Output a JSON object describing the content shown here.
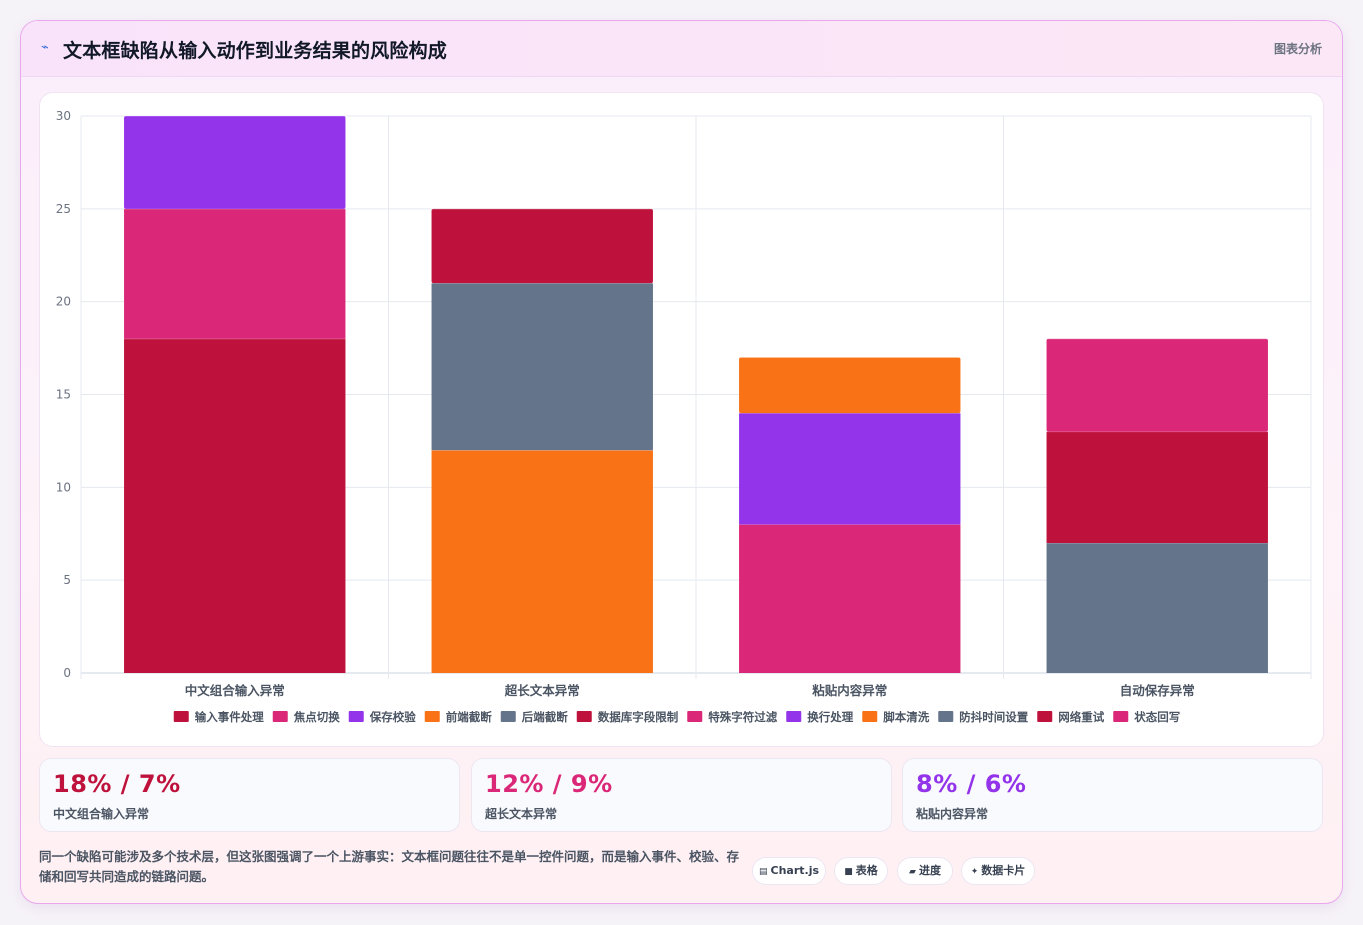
{
  "header": {
    "title": "文本框缺陷从输入动作到业务结果的风险构成",
    "tag": "图表分析"
  },
  "chart_data": {
    "type": "bar",
    "stacked": true,
    "categories": [
      "中文组合输入异常",
      "超长文本异常",
      "粘贴内容异常",
      "自动保存异常"
    ],
    "ylim": [
      0,
      30
    ],
    "yticks": [
      0,
      5,
      10,
      15,
      20,
      25,
      30
    ],
    "grid": true,
    "legend_position": "bottom",
    "series": [
      {
        "name": "输入事件处理",
        "color": "#be123c",
        "values": [
          18,
          null,
          null,
          null
        ]
      },
      {
        "name": "焦点切换",
        "color": "#db2777",
        "values": [
          7,
          null,
          null,
          null
        ]
      },
      {
        "name": "保存校验",
        "color": "#9333ea",
        "values": [
          5,
          null,
          null,
          null
        ]
      },
      {
        "name": "前端截断",
        "color": "#f97316",
        "values": [
          null,
          12,
          null,
          null
        ]
      },
      {
        "name": "后端截断",
        "color": "#64748b",
        "values": [
          null,
          9,
          null,
          null
        ]
      },
      {
        "name": "数据库字段限制",
        "color": "#be123c",
        "values": [
          null,
          4,
          null,
          null
        ]
      },
      {
        "name": "特殊字符过滤",
        "color": "#db2777",
        "values": [
          null,
          null,
          8,
          null
        ]
      },
      {
        "name": "换行处理",
        "color": "#9333ea",
        "values": [
          null,
          null,
          6,
          null
        ]
      },
      {
        "name": "脚本清洗",
        "color": "#f97316",
        "values": [
          null,
          null,
          3,
          null
        ]
      },
      {
        "name": "防抖时间设置",
        "color": "#64748b",
        "values": [
          null,
          null,
          null,
          7
        ]
      },
      {
        "name": "网络重试",
        "color": "#be123c",
        "values": [
          null,
          null,
          null,
          6
        ]
      },
      {
        "name": "状态回写",
        "color": "#db2777",
        "values": [
          null,
          null,
          null,
          5
        ]
      }
    ]
  },
  "stats": [
    {
      "value": "18% / 7%",
      "label": "中文组合输入异常",
      "color": "#be123c"
    },
    {
      "value": "12% / 9%",
      "label": "超长文本异常",
      "color": "#db2777"
    },
    {
      "value": "8% / 6%",
      "label": "粘贴内容异常",
      "color": "#9333ea"
    }
  ],
  "note": "同一个缺陷可能涉及多个技术层，但这张图强调了一个上游事实：文本框问题往往不是单一控件问题，而是输入事件、校验、存储和回写共同造成的链路问题。",
  "chips": [
    {
      "icon": "chart-icon",
      "glyph": "▤",
      "label": "Chart.js"
    },
    {
      "icon": "table-icon",
      "glyph": "■",
      "label": "表格"
    },
    {
      "icon": "progress-icon",
      "glyph": "▰",
      "label": "进度"
    },
    {
      "icon": "card-icon",
      "glyph": "✦",
      "label": "数据卡片"
    }
  ]
}
